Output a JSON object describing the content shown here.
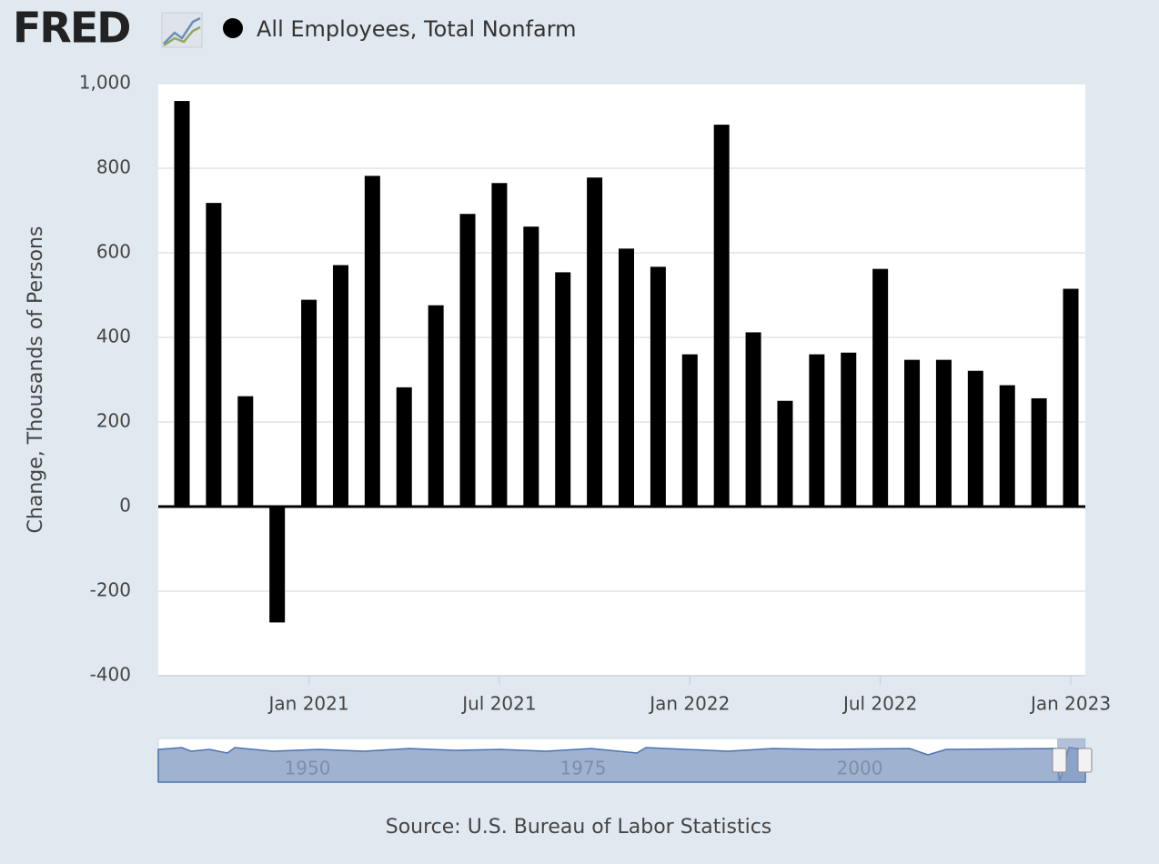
{
  "logo": "FRED",
  "chart_data": {
    "type": "bar",
    "series": [
      {
        "name": "All Employees, Total Nonfarm",
        "color": "#000000",
        "values": [
          959,
          718,
          261,
          -274,
          489,
          571,
          782,
          282,
          476,
          692,
          765,
          662,
          554,
          778,
          610,
          567,
          360,
          903,
          412,
          250,
          360,
          364,
          562,
          347,
          347,
          321,
          287,
          256,
          515
        ]
      }
    ],
    "categories": [
      null,
      null,
      null,
      null,
      "Jan 2021",
      null,
      null,
      null,
      null,
      null,
      "Jul 2021",
      null,
      null,
      null,
      null,
      null,
      "Jan 2022",
      null,
      null,
      null,
      null,
      null,
      "Jul 2022",
      null,
      null,
      null,
      null,
      null,
      "Jan 2023"
    ],
    "y_label": "Change, Thousands of Persons",
    "ylim": [
      -400,
      1000
    ],
    "yticks": [
      -400,
      -200,
      0,
      200,
      400,
      600,
      800,
      {
        "value": 1000,
        "label": "1,000"
      }
    ],
    "grid": true,
    "legend": "top-left",
    "navigator": {
      "labels": [
        "1950",
        "1975",
        "2000"
      ]
    },
    "source": "Source: U.S. Bureau of Labor Statistics"
  }
}
